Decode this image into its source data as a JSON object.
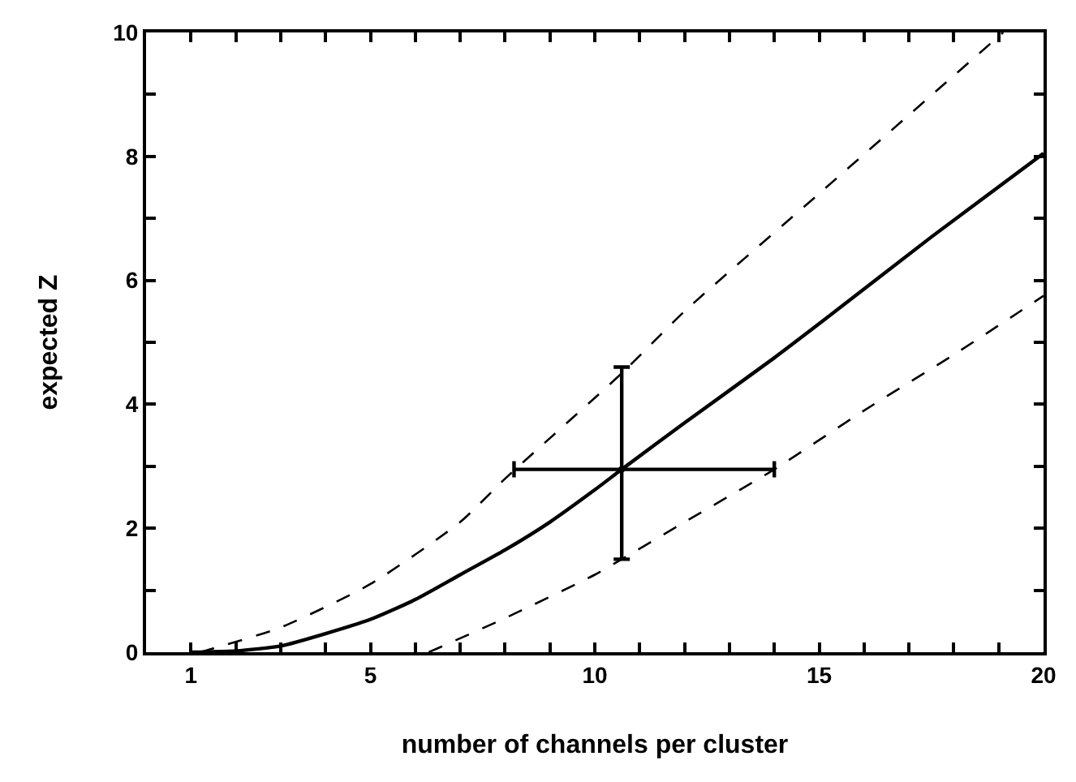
{
  "chart_data": {
    "type": "line",
    "xlabel": "number of channels per cluster",
    "ylabel": "expected Z",
    "xlim": [
      0,
      20
    ],
    "ylim": [
      0,
      10
    ],
    "xticks": [
      {
        "value": 1,
        "label": "1"
      },
      {
        "value": 2,
        "label": null
      },
      {
        "value": 3,
        "label": null
      },
      {
        "value": 4,
        "label": null
      },
      {
        "value": 5,
        "label": "5"
      },
      {
        "value": 6,
        "label": null
      },
      {
        "value": 7,
        "label": null
      },
      {
        "value": 8,
        "label": null
      },
      {
        "value": 9,
        "label": null
      },
      {
        "value": 10,
        "label": "10"
      },
      {
        "value": 11,
        "label": null
      },
      {
        "value": 12,
        "label": null
      },
      {
        "value": 13,
        "label": null
      },
      {
        "value": 14,
        "label": null
      },
      {
        "value": 15,
        "label": "15"
      },
      {
        "value": 16,
        "label": null
      },
      {
        "value": 17,
        "label": null
      },
      {
        "value": 18,
        "label": null
      },
      {
        "value": 19,
        "label": null
      },
      {
        "value": 20,
        "label": "20"
      }
    ],
    "yticks": [
      0,
      {
        "value": 1,
        "label": null
      },
      2,
      {
        "value": 3,
        "label": null
      },
      4,
      {
        "value": 5,
        "label": null
      },
      6,
      {
        "value": 7,
        "label": null
      },
      8,
      {
        "value": 9,
        "label": null
      },
      10
    ],
    "grid": false,
    "marker": "none",
    "series": [
      {
        "color": "#000000",
        "line_style": "solid",
        "x": [
          1,
          2,
          3,
          4,
          5,
          6,
          7,
          8,
          9,
          10,
          10.6,
          12,
          14,
          15,
          17.5,
          20
        ],
        "values": [
          0,
          0.02,
          0.1,
          0.3,
          0.53,
          0.85,
          1.25,
          1.65,
          2.1,
          2.62,
          2.95,
          3.7,
          4.75,
          5.3,
          6.7,
          8.05
        ]
      },
      {
        "color": "#000000",
        "line_style": "dashed",
        "x": [
          1.2,
          3,
          5,
          7,
          8,
          10.6,
          12,
          15,
          19.1
        ],
        "values": [
          0,
          0.4,
          1.1,
          2.1,
          2.8,
          4.5,
          5.5,
          7.4,
          10
        ]
      },
      {
        "color": "#000000",
        "line_style": "dashed",
        "x": [
          6.3,
          8,
          10,
          10.6,
          12,
          14,
          16,
          18,
          20
        ],
        "values": [
          0,
          0.55,
          1.25,
          1.5,
          2.1,
          2.95,
          3.9,
          4.8,
          5.75
        ]
      },
      {
        "type": "scatter",
        "color": "#000000",
        "marker": "circle",
        "x": [
          10.6
        ],
        "values": [
          2.95
        ],
        "errors": [
          [
            1.5,
            4.6
          ]
        ],
        "xerrors": [
          [
            8.2,
            14.0
          ]
        ]
      }
    ]
  }
}
